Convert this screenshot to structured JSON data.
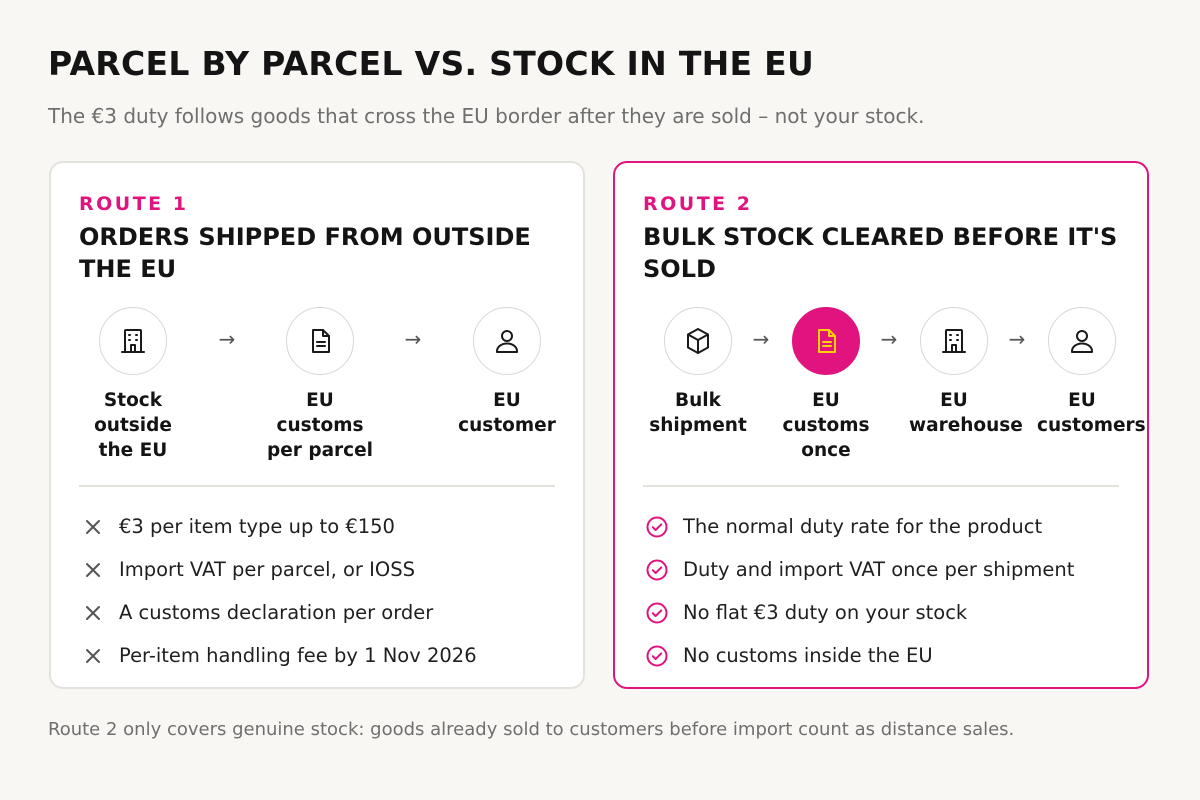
{
  "header": {
    "title": "PARCEL BY PARCEL VS. STOCK IN THE EU",
    "subtitle": "The €3 duty follows goods that cross the EU border after they are sold – not your stock."
  },
  "colors": {
    "accent": "#e0137f",
    "highlight_icon": "#ffd400",
    "background": "#f8f7f4"
  },
  "routes": [
    {
      "label": "ROUTE 1",
      "title": "ORDERS SHIPPED FROM OUTSIDE THE EU",
      "highlighted": false,
      "steps": [
        {
          "label": "Stock outside the EU",
          "icon": "building-icon"
        },
        {
          "label": "EU customs per parcel",
          "icon": "document-icon"
        },
        {
          "label": "EU customer",
          "icon": "person-icon"
        }
      ],
      "arrow": "→",
      "points_marker": "cross-icon",
      "points": [
        "€3 per item type up to €150",
        "Import VAT per parcel, or IOSS",
        "A customs declaration per order",
        "Per-item handling fee by 1 Nov 2026"
      ]
    },
    {
      "label": "ROUTE 2",
      "title": "BULK STOCK CLEARED BEFORE IT'S SOLD",
      "highlighted": true,
      "steps": [
        {
          "label": "Bulk shipment",
          "icon": "box-icon"
        },
        {
          "label": "EU customs once",
          "icon": "document-icon",
          "highlighted": true
        },
        {
          "label": "EU warehouse",
          "icon": "building-icon"
        },
        {
          "label": "EU customers",
          "icon": "person-icon"
        }
      ],
      "arrow": "→",
      "points_marker": "check-circle-icon",
      "points": [
        "The normal duty rate for the product",
        "Duty and import VAT once per shipment",
        "No flat €3 duty on your stock",
        "No customs inside the EU"
      ]
    }
  ],
  "footer": "Route 2 only covers genuine stock: goods already sold to customers before import count as distance sales."
}
